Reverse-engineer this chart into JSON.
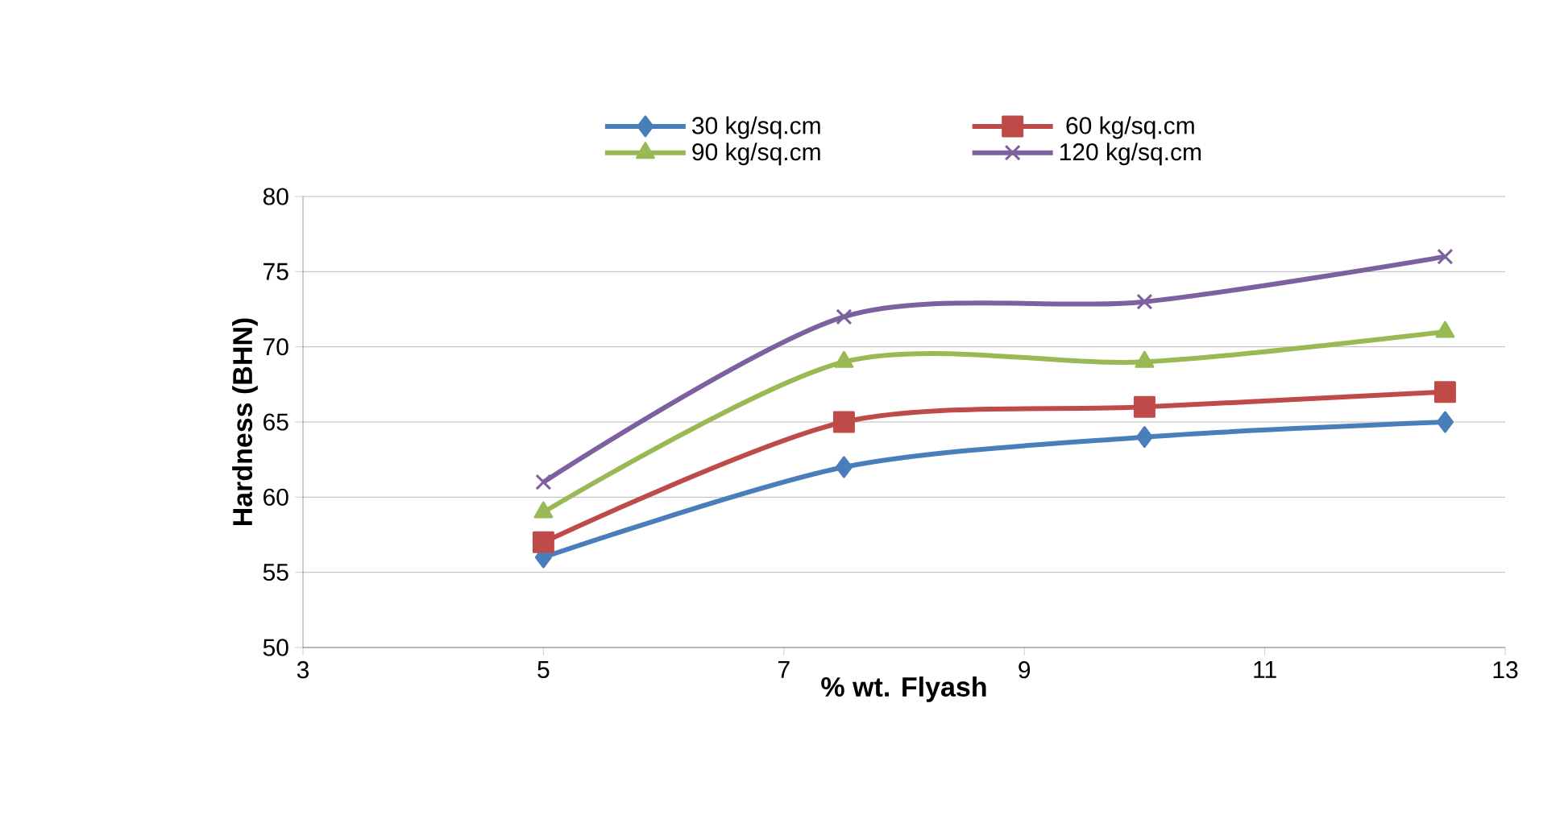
{
  "chart_data": {
    "type": "line",
    "xlabel": "% wt. Flyash",
    "ylabel": "Hardness (BHN)",
    "x": [
      5,
      7.5,
      10,
      12.5
    ],
    "series": [
      {
        "name": "30 kg/sq.cm",
        "color": "#4a7ebb",
        "marker": "diamond",
        "values": [
          56,
          62,
          64,
          65
        ]
      },
      {
        "name": "60 kg/sq.cm",
        "color": "#be4b48",
        "marker": "square",
        "values": [
          57,
          65,
          66,
          67
        ]
      },
      {
        "name": "90 kg/sq.cm",
        "color": "#98b954",
        "marker": "triangle",
        "values": [
          59,
          69,
          69,
          71
        ]
      },
      {
        "name": "120 kg/sq.cm",
        "color": "#7d60a0",
        "marker": "cross",
        "values": [
          61,
          72,
          73,
          76
        ]
      }
    ],
    "xlim": [
      3,
      13
    ],
    "xticks": [
      3,
      5,
      7,
      9,
      11,
      13
    ],
    "ylim": [
      50,
      80
    ],
    "yticks": [
      50,
      55,
      60,
      65,
      70,
      75,
      80
    ],
    "grid": "y",
    "legend": "top",
    "line_style": "solid"
  }
}
